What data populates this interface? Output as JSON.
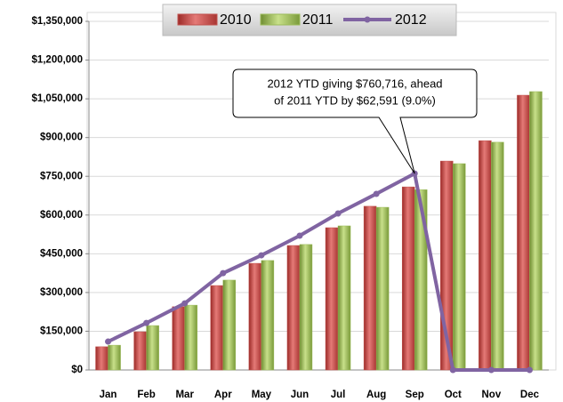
{
  "chart_data": {
    "type": "bar_line",
    "categories": [
      "Jan",
      "Feb",
      "Mar",
      "Apr",
      "May",
      "Jun",
      "Jul",
      "Aug",
      "Sep",
      "Oct",
      "Nov",
      "Dec"
    ],
    "series": [
      {
        "name": "2010",
        "type": "bar",
        "color": "#c0504d",
        "values": [
          90000,
          148000,
          245000,
          327000,
          413000,
          482000,
          551000,
          634000,
          709000,
          809000,
          888000,
          1064000
        ]
      },
      {
        "name": "2011",
        "type": "bar",
        "color": "#9bbb59",
        "values": [
          96000,
          172000,
          251000,
          348000,
          424000,
          486000,
          558000,
          630000,
          698000,
          799000,
          882000,
          1078000
        ]
      },
      {
        "name": "2012",
        "type": "line",
        "color": "#8064a2",
        "values": [
          110000,
          182000,
          258000,
          375000,
          444000,
          520000,
          606000,
          682000,
          760716,
          0,
          0,
          0
        ]
      }
    ],
    "ylim": [
      0,
      1350000
    ],
    "yticks": [
      {
        "value": 0,
        "label": "$0"
      },
      {
        "value": 150000,
        "label": "$150,000"
      },
      {
        "value": 300000,
        "label": "$300,000"
      },
      {
        "value": 450000,
        "label": "$450,000"
      },
      {
        "value": 600000,
        "label": "$600,000"
      },
      {
        "value": 750000,
        "label": "$750,000"
      },
      {
        "value": 900000,
        "label": "$900,000"
      },
      {
        "value": 1050000,
        "label": "$1,050,000"
      },
      {
        "value": 1200000,
        "label": "$1,200,000"
      },
      {
        "value": 1350000,
        "label": "$1,350,000"
      }
    ],
    "grid": true,
    "legend": "top",
    "annotation": [
      "2012 YTD giving  $760,716, ahead",
      "of 2011 YTD by  $62,591 (9.0%)"
    ]
  }
}
